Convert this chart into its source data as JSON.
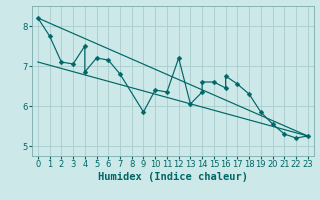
{
  "xlabel": "Humidex (Indice chaleur)",
  "bg_color": "#cce8e8",
  "grid_color": "#aacccc",
  "line_color": "#006666",
  "xlim": [
    -0.5,
    23.5
  ],
  "ylim": [
    4.75,
    8.5
  ],
  "yticks": [
    5,
    6,
    7,
    8
  ],
  "xticks": [
    0,
    1,
    2,
    3,
    4,
    5,
    6,
    7,
    8,
    9,
    10,
    11,
    12,
    13,
    14,
    15,
    16,
    17,
    18,
    19,
    20,
    21,
    22,
    23
  ],
  "scatter_x": [
    0,
    1,
    2,
    3,
    4,
    4,
    5,
    6,
    7,
    9,
    10,
    11,
    12,
    13,
    14,
    14,
    15,
    16,
    16,
    17,
    18,
    19,
    20,
    21,
    22,
    23
  ],
  "scatter_y": [
    8.2,
    7.75,
    7.1,
    7.05,
    7.5,
    6.85,
    7.2,
    7.15,
    6.8,
    5.85,
    6.4,
    6.35,
    7.2,
    6.05,
    6.35,
    6.6,
    6.6,
    6.45,
    6.75,
    6.55,
    6.3,
    5.85,
    5.55,
    5.3,
    5.2,
    5.25
  ],
  "line1_x": [
    0,
    23
  ],
  "line1_y": [
    8.2,
    5.25
  ],
  "line2_x": [
    0,
    23
  ],
  "line2_y": [
    7.1,
    5.25
  ],
  "xlabel_fontsize": 7.5,
  "tick_fontsize": 6,
  "marker_size": 2.5,
  "linewidth": 0.85
}
